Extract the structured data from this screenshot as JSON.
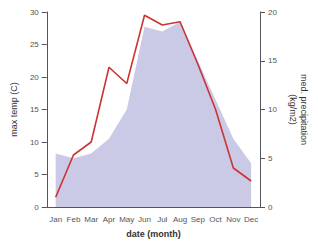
{
  "chart_data": {
    "type": "line",
    "xlabel": "date (month)",
    "ylabel": "max temp (C)",
    "y2label": "med. precipitation\n(kg/m2)",
    "categories": [
      "Jan",
      "Feb",
      "Mar",
      "Apr",
      "May",
      "Jun",
      "Jul",
      "Aug",
      "Sep",
      "Oct",
      "Nov",
      "Dec"
    ],
    "series": [
      {
        "type": "area",
        "axis": "y2",
        "color": "#b3b3dd",
        "values": [
          5.5,
          5.0,
          5.5,
          7.0,
          10.0,
          18.5,
          18.0,
          19.0,
          15.0,
          11.0,
          7.0,
          4.5
        ]
      },
      {
        "type": "line",
        "axis": "y",
        "color": "#cc3333",
        "values": [
          1.5,
          8.0,
          10.0,
          21.5,
          19.0,
          29.5,
          28.0,
          28.5,
          22.0,
          15.0,
          6.0,
          4.0
        ]
      }
    ],
    "ylim": [
      0,
      30
    ],
    "yticks": [
      0,
      5,
      10,
      15,
      20,
      25,
      30
    ],
    "y2lim": [
      0,
      20
    ],
    "y2ticks": [
      0,
      5,
      10,
      15,
      20
    ],
    "grid": false
  }
}
